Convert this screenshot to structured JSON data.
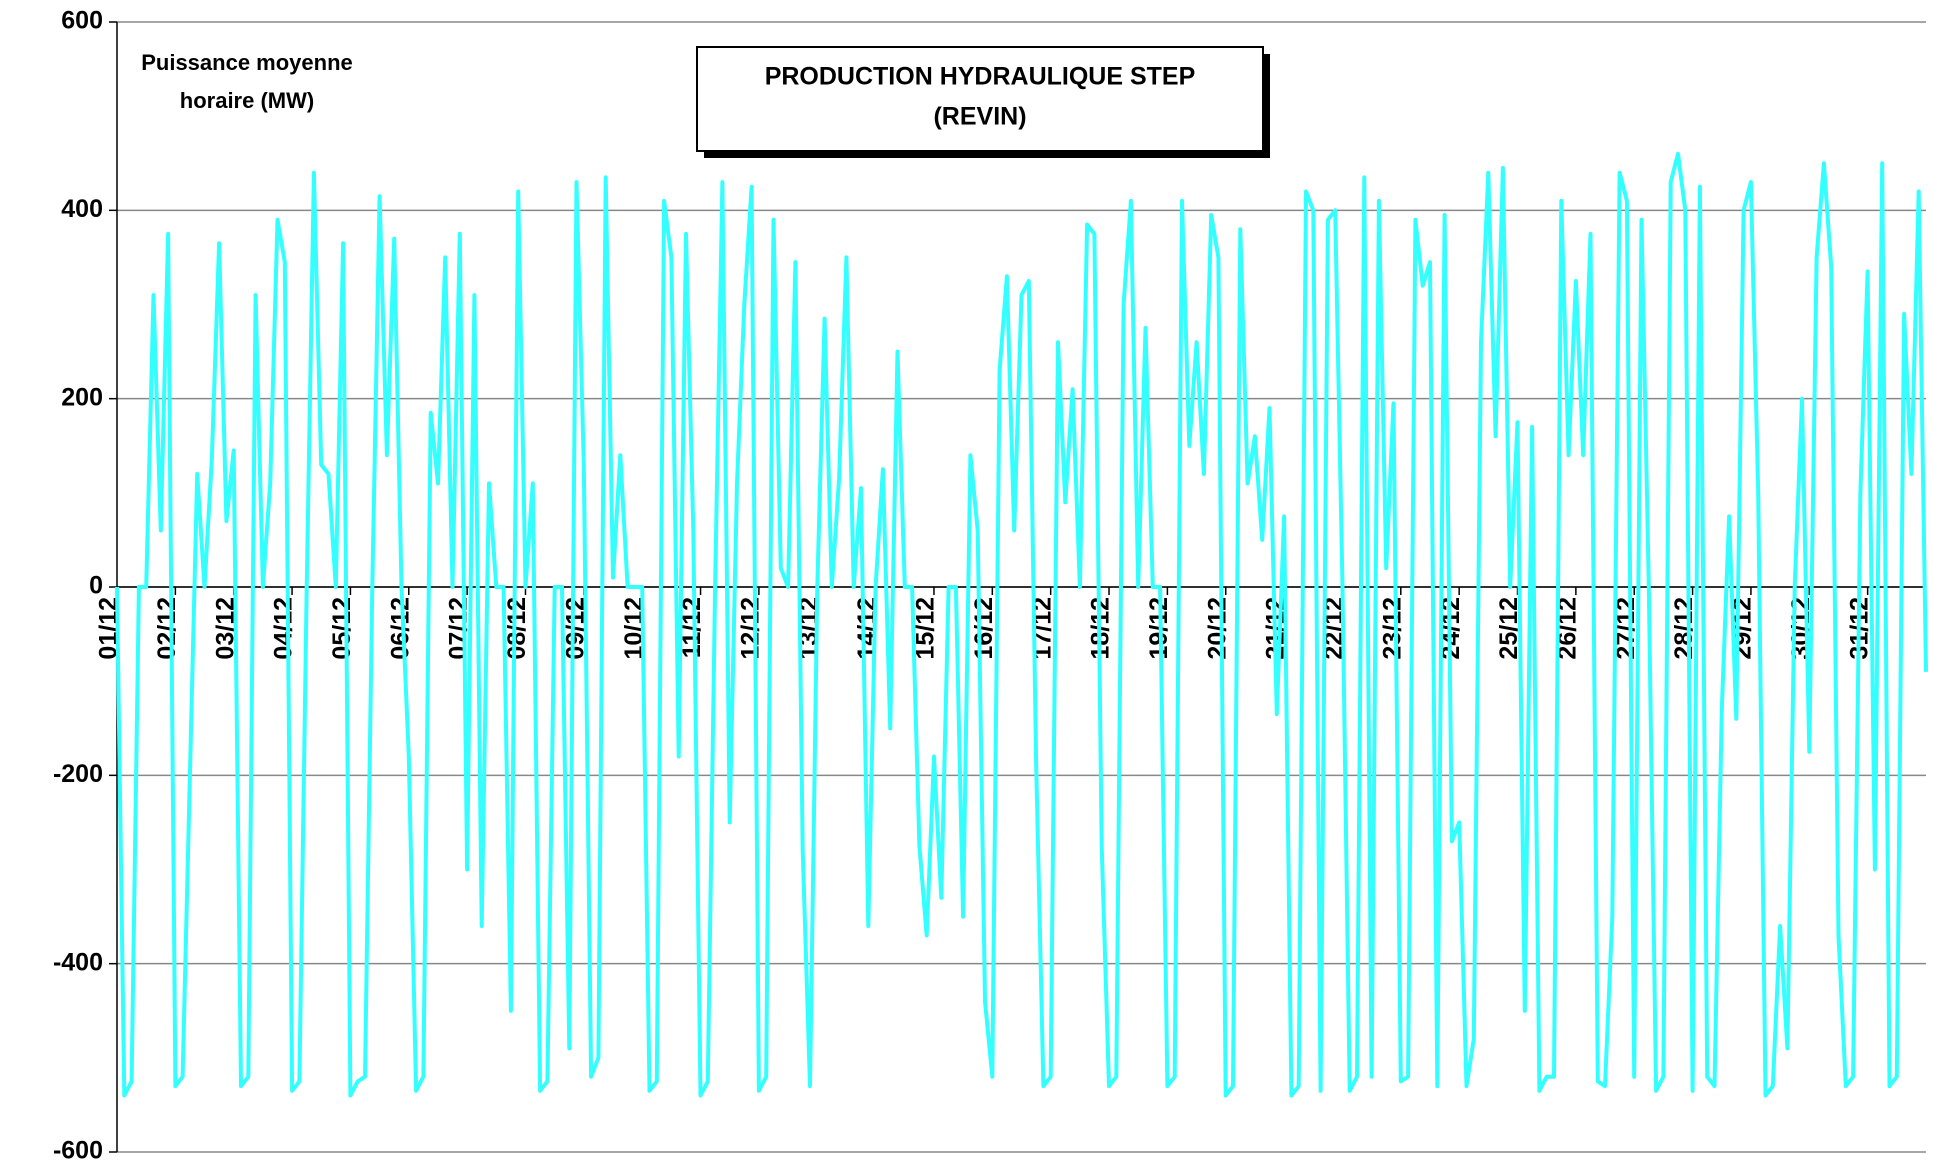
{
  "chart_data": {
    "type": "line",
    "title": [
      "PRODUCTION HYDRAULIQUE STEP",
      "(REVIN)"
    ],
    "y_label": [
      "Puissance moyenne",
      "horaire (MW)"
    ],
    "x": [
      0,
      3,
      6,
      9,
      12,
      15,
      18,
      21,
      24,
      27,
      30,
      33,
      36,
      39,
      42,
      45,
      48,
      51,
      54,
      57,
      60,
      63,
      66,
      69,
      72,
      75,
      78,
      81,
      84,
      87,
      90,
      93,
      96,
      99,
      102,
      105,
      108,
      111,
      114,
      117,
      120,
      123,
      126,
      129,
      132,
      135,
      138,
      141,
      144,
      147,
      150,
      153,
      156,
      159,
      162,
      165,
      168,
      171,
      174,
      177,
      180,
      183,
      186,
      189,
      192,
      195,
      198,
      201,
      204,
      207,
      210,
      213,
      216,
      219,
      222,
      225,
      228,
      231,
      234,
      237,
      240,
      243,
      246,
      249,
      252,
      255,
      258,
      261,
      264,
      267,
      270,
      273,
      276,
      279,
      282,
      285,
      288,
      291,
      294,
      297,
      300,
      303,
      306,
      309,
      312,
      315,
      318,
      321,
      324,
      327,
      330,
      333,
      336,
      339,
      342,
      345,
      348,
      351,
      354,
      357,
      360,
      363,
      366,
      369,
      372,
      375,
      378,
      381,
      384,
      387,
      390,
      393,
      396,
      399,
      402,
      405,
      408,
      411,
      414,
      417,
      420,
      423,
      426,
      429,
      432,
      435,
      438,
      441,
      444,
      447,
      450,
      453,
      456,
      459,
      462,
      465,
      468,
      471,
      474,
      477,
      480,
      483,
      486,
      489,
      492,
      495,
      498,
      501,
      504,
      507,
      510,
      513,
      516,
      519,
      522,
      525,
      528,
      531,
      534,
      537,
      540,
      543,
      546,
      549,
      552,
      555,
      558,
      561,
      564,
      567,
      570,
      573,
      576,
      579,
      582,
      585,
      588,
      591,
      594,
      597,
      600,
      603,
      606,
      609,
      612,
      615,
      618,
      621,
      624,
      627,
      630,
      633,
      636,
      639,
      642,
      645,
      648,
      651,
      654,
      657,
      660,
      663,
      666,
      669,
      672,
      675,
      678,
      681,
      684,
      687,
      690,
      693,
      696,
      699,
      702,
      705,
      708,
      711,
      714,
      717,
      720,
      723,
      726,
      729,
      732,
      735,
      738,
      741,
      744
    ],
    "series": [
      {
        "name": "Production",
        "color": "#33ffff",
        "values": [
          0,
          -540,
          -525,
          0,
          0,
          310,
          60,
          375,
          -530,
          -520,
          -200,
          120,
          0,
          135,
          365,
          70,
          145,
          -530,
          -520,
          310,
          0,
          110,
          390,
          345,
          -535,
          -525,
          0,
          440,
          130,
          120,
          0,
          365,
          -540,
          -525,
          -520,
          0,
          415,
          140,
          370,
          0,
          -180,
          -535,
          -520,
          185,
          110,
          350,
          0,
          375,
          -300,
          310,
          -360,
          110,
          0,
          0,
          -450,
          420,
          0,
          110,
          -535,
          -525,
          0,
          0,
          -490,
          430,
          130,
          -520,
          -500,
          435,
          10,
          140,
          0,
          0,
          0,
          -535,
          -525,
          410,
          350,
          -180,
          375,
          60,
          -540,
          -525,
          0,
          430,
          -250,
          110,
          300,
          425,
          -535,
          -520,
          390,
          20,
          0,
          345,
          -280,
          -530,
          0,
          285,
          0,
          115,
          350,
          0,
          105,
          -360,
          0,
          125,
          -150,
          250,
          0,
          0,
          -275,
          -370,
          -180,
          -330,
          0,
          0,
          -350,
          140,
          60,
          -440,
          -520,
          230,
          330,
          60,
          310,
          325,
          -185,
          -530,
          -520,
          260,
          90,
          210,
          0,
          385,
          375,
          -275,
          -530,
          -520,
          300,
          410,
          0,
          275,
          0,
          0,
          -530,
          -520,
          410,
          150,
          260,
          120,
          395,
          350,
          -540,
          -530,
          380,
          110,
          160,
          50,
          190,
          -135,
          75,
          -540,
          -530,
          420,
          400,
          -535,
          390,
          400,
          0,
          -535,
          -520,
          435,
          -520,
          410,
          20,
          195,
          -525,
          -520,
          390,
          320,
          345,
          -530,
          395,
          -270,
          -250,
          -530,
          -480,
          260,
          440,
          160,
          445,
          0,
          175,
          -450,
          170,
          -535,
          -520,
          -520,
          410,
          140,
          325,
          140,
          375,
          -525,
          -530,
          -350,
          440,
          410,
          -520,
          390,
          0,
          -535,
          -520,
          430,
          460,
          400,
          -535,
          425,
          -520,
          -530,
          -130,
          75,
          -140,
          400,
          430,
          100,
          -540,
          -530,
          -360,
          -490,
          0,
          200,
          -175,
          350,
          450,
          340,
          -370,
          -530,
          -520,
          100,
          335,
          -300,
          450,
          -530,
          -520,
          290,
          120,
          420,
          -90
        ]
      }
    ],
    "xlim": [
      0,
      744
    ],
    "xticks": [
      {
        "value": 0,
        "label": "01/12"
      },
      {
        "value": 24,
        "label": "02/12"
      },
      {
        "value": 48,
        "label": "03/12"
      },
      {
        "value": 72,
        "label": "04/12"
      },
      {
        "value": 96,
        "label": "05/12"
      },
      {
        "value": 120,
        "label": "06/12"
      },
      {
        "value": 144,
        "label": "07/12"
      },
      {
        "value": 168,
        "label": "08/12"
      },
      {
        "value": 192,
        "label": "09/12"
      },
      {
        "value": 216,
        "label": "10/12"
      },
      {
        "value": 240,
        "label": "11/12"
      },
      {
        "value": 264,
        "label": "12/12"
      },
      {
        "value": 288,
        "label": "13/12"
      },
      {
        "value": 312,
        "label": "14/12"
      },
      {
        "value": 336,
        "label": "15/12"
      },
      {
        "value": 360,
        "label": "16/12"
      },
      {
        "value": 384,
        "label": "17/12"
      },
      {
        "value": 408,
        "label": "18/12"
      },
      {
        "value": 432,
        "label": "19/12"
      },
      {
        "value": 456,
        "label": "20/12"
      },
      {
        "value": 480,
        "label": "21/12"
      },
      {
        "value": 504,
        "label": "22/12"
      },
      {
        "value": 528,
        "label": "23/12"
      },
      {
        "value": 552,
        "label": "24/12"
      },
      {
        "value": 576,
        "label": "25/12"
      },
      {
        "value": 600,
        "label": "26/12"
      },
      {
        "value": 624,
        "label": "27/12"
      },
      {
        "value": 648,
        "label": "28/12"
      },
      {
        "value": 672,
        "label": "29/12"
      },
      {
        "value": 696,
        "label": "30/12"
      },
      {
        "value": 720,
        "label": "31/12"
      }
    ],
    "ylim": [
      -600,
      600
    ],
    "yticks": [
      -600,
      -400,
      -200,
      0,
      200,
      400,
      600
    ],
    "grid": true
  }
}
